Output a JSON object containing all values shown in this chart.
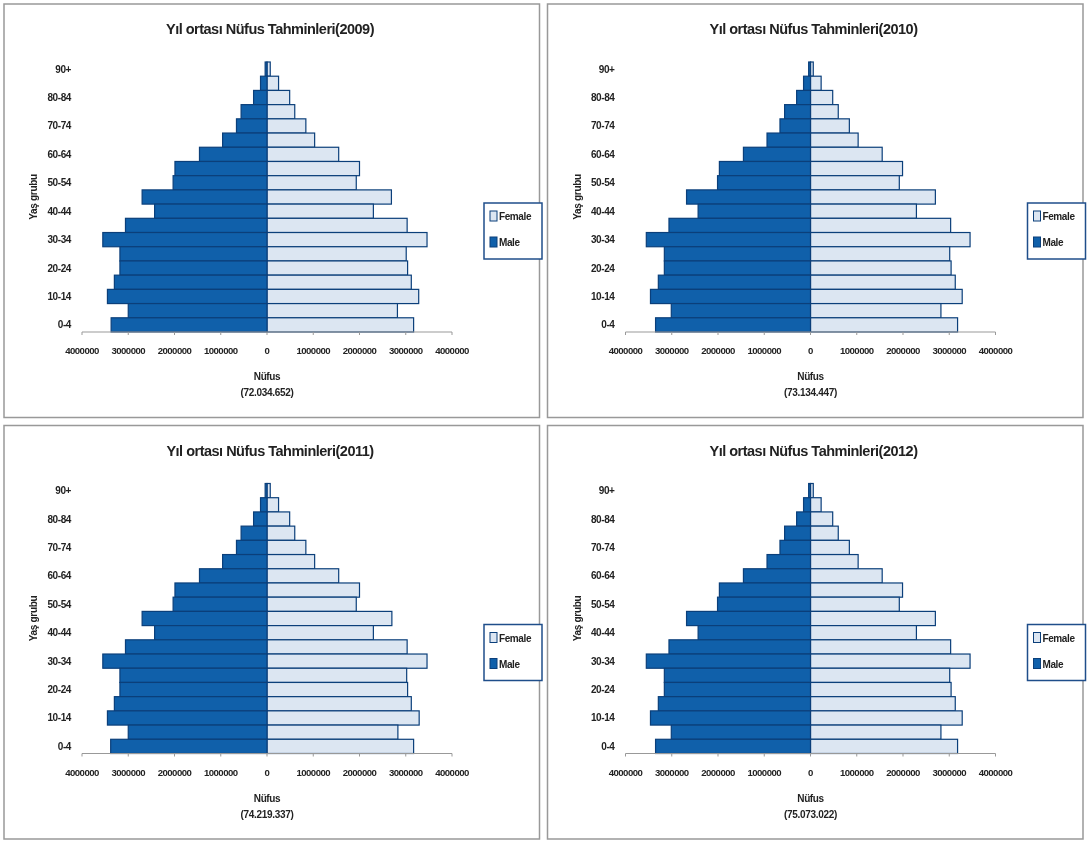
{
  "chart_data": [
    {
      "type": "bar",
      "orientation": "horizontal",
      "title": "Yıl ortası Nüfus Tahminleri(2009)",
      "stacked": true,
      "xlabel": "Nüfus",
      "ylabel": "Yaş grubu",
      "annotations": [
        "(72.034.652)"
      ],
      "categories": [
        "90+",
        null,
        "80-84",
        null,
        "70-74",
        null,
        "60-64",
        null,
        "50-54",
        null,
        "40-44",
        null,
        "30-34",
        null,
        "20-24",
        null,
        "10-14",
        null,
        "0-4"
      ],
      "xlim": [
        -4000000,
        4000000
      ],
      "xticks": [
        {
          "value": -4000000,
          "label": "4000000"
        },
        {
          "value": -3000000,
          "label": "3000000"
        },
        {
          "value": -2000000,
          "label": "2000000"
        },
        {
          "value": -1000000,
          "label": "1000000"
        },
        0,
        1000000,
        2000000,
        3000000,
        4000000
      ],
      "legend": "right",
      "grid": false,
      "series": [
        {
          "name": "Female",
          "color": "#dce6f2",
          "values": [
            70000,
            250000,
            490000,
            600000,
            840000,
            1030000,
            1550000,
            2000000,
            1930000,
            2690000,
            2300000,
            3030000,
            3460000,
            3010000,
            3040000,
            3120000,
            3280000,
            2820000,
            3170000
          ]
        },
        {
          "name": "Male",
          "color": "#1060aa",
          "values": [
            -40000,
            -140000,
            -290000,
            -560000,
            -660000,
            -960000,
            -1460000,
            -1990000,
            -2030000,
            -2700000,
            -2430000,
            -3060000,
            -3550000,
            -3180000,
            -3180000,
            -3300000,
            -3450000,
            -3000000,
            -3370000
          ]
        }
      ]
    },
    {
      "type": "bar",
      "orientation": "horizontal",
      "title": "Yıl ortası Nüfus Tahminleri(2010)",
      "stacked": true,
      "xlabel": "Nüfus",
      "ylabel": "Yaş grubu",
      "annotations": [
        "(73.134.447)"
      ],
      "categories": [
        "90+",
        null,
        "80-84",
        null,
        "70-74",
        null,
        "60-64",
        null,
        "50-54",
        null,
        "40-44",
        null,
        "30-34",
        null,
        "20-24",
        null,
        "10-14",
        null,
        "0-4"
      ],
      "xlim": [
        -4000000,
        4000000
      ],
      "xticks": [
        {
          "value": -4000000,
          "label": "4000000"
        },
        {
          "value": -3000000,
          "label": "3000000"
        },
        {
          "value": -2000000,
          "label": "2000000"
        },
        {
          "value": -1000000,
          "label": "1000000"
        },
        0,
        1000000,
        2000000,
        3000000,
        4000000
      ],
      "legend": "right",
      "grid": false,
      "series": [
        {
          "name": "Female",
          "color": "#dce6f2",
          "values": [
            60000,
            230000,
            480000,
            600000,
            840000,
            1030000,
            1550000,
            1990000,
            1920000,
            2700000,
            2290000,
            3030000,
            3450000,
            3010000,
            3040000,
            3130000,
            3280000,
            2820000,
            3180000
          ]
        },
        {
          "name": "Male",
          "color": "#1060aa",
          "values": [
            -40000,
            -150000,
            -300000,
            -560000,
            -660000,
            -940000,
            -1450000,
            -1970000,
            -2010000,
            -2680000,
            -2430000,
            -3060000,
            -3550000,
            -3160000,
            -3160000,
            -3290000,
            -3460000,
            -3010000,
            -3350000
          ]
        }
      ]
    },
    {
      "type": "bar",
      "orientation": "horizontal",
      "title": "Yıl ortası Nüfus Tahminleri(2011)",
      "stacked": true,
      "xlabel": "Nüfus",
      "ylabel": "Yaş grubu",
      "annotations": [
        "(74.219.337)"
      ],
      "categories": [
        "90+",
        null,
        "80-84",
        null,
        "70-74",
        null,
        "60-64",
        null,
        "50-54",
        null,
        "40-44",
        null,
        "30-34",
        null,
        "20-24",
        null,
        "10-14",
        null,
        "0-4"
      ],
      "xlim": [
        -4000000,
        4000000
      ],
      "xticks": [
        {
          "value": -4000000,
          "label": "4000000"
        },
        {
          "value": -3000000,
          "label": "3000000"
        },
        {
          "value": -2000000,
          "label": "2000000"
        },
        {
          "value": -1000000,
          "label": "1000000"
        },
        0,
        1000000,
        2000000,
        3000000,
        4000000
      ],
      "legend": "right",
      "grid": false,
      "series": [
        {
          "name": "Female",
          "color": "#dce6f2",
          "values": [
            70000,
            250000,
            490000,
            600000,
            840000,
            1030000,
            1550000,
            2000000,
            1930000,
            2700000,
            2300000,
            3030000,
            3460000,
            3020000,
            3040000,
            3120000,
            3290000,
            2830000,
            3170000
          ]
        },
        {
          "name": "Male",
          "color": "#1060aa",
          "values": [
            -40000,
            -140000,
            -290000,
            -560000,
            -660000,
            -960000,
            -1460000,
            -1990000,
            -2030000,
            -2700000,
            -2430000,
            -3060000,
            -3550000,
            -3180000,
            -3180000,
            -3300000,
            -3450000,
            -3000000,
            -3380000
          ]
        }
      ]
    },
    {
      "type": "bar",
      "orientation": "horizontal",
      "title": "Yıl ortası Nüfus Tahminleri(2012)",
      "stacked": true,
      "xlabel": "Nüfus",
      "ylabel": "Yaş grubu",
      "annotations": [
        "(75.073.022)"
      ],
      "categories": [
        "90+",
        null,
        "80-84",
        null,
        "70-74",
        null,
        "60-64",
        null,
        "50-54",
        null,
        "40-44",
        null,
        "30-34",
        null,
        "20-24",
        null,
        "10-14",
        null,
        "0-4"
      ],
      "xlim": [
        -4000000,
        4000000
      ],
      "xticks": [
        {
          "value": -4000000,
          "label": "4000000"
        },
        {
          "value": -3000000,
          "label": "3000000"
        },
        {
          "value": -2000000,
          "label": "2000000"
        },
        {
          "value": -1000000,
          "label": "1000000"
        },
        0,
        1000000,
        2000000,
        3000000,
        4000000
      ],
      "legend": "right",
      "grid": false,
      "series": [
        {
          "name": "Female",
          "color": "#dce6f2",
          "values": [
            60000,
            230000,
            480000,
            600000,
            840000,
            1030000,
            1550000,
            1990000,
            1920000,
            2700000,
            2290000,
            3030000,
            3450000,
            3010000,
            3040000,
            3130000,
            3280000,
            2820000,
            3180000
          ]
        },
        {
          "name": "Male",
          "color": "#1060aa",
          "values": [
            -40000,
            -150000,
            -300000,
            -560000,
            -660000,
            -940000,
            -1450000,
            -1970000,
            -2010000,
            -2680000,
            -2430000,
            -3060000,
            -3550000,
            -3160000,
            -3160000,
            -3290000,
            -3460000,
            -3010000,
            -3350000
          ]
        }
      ]
    }
  ]
}
